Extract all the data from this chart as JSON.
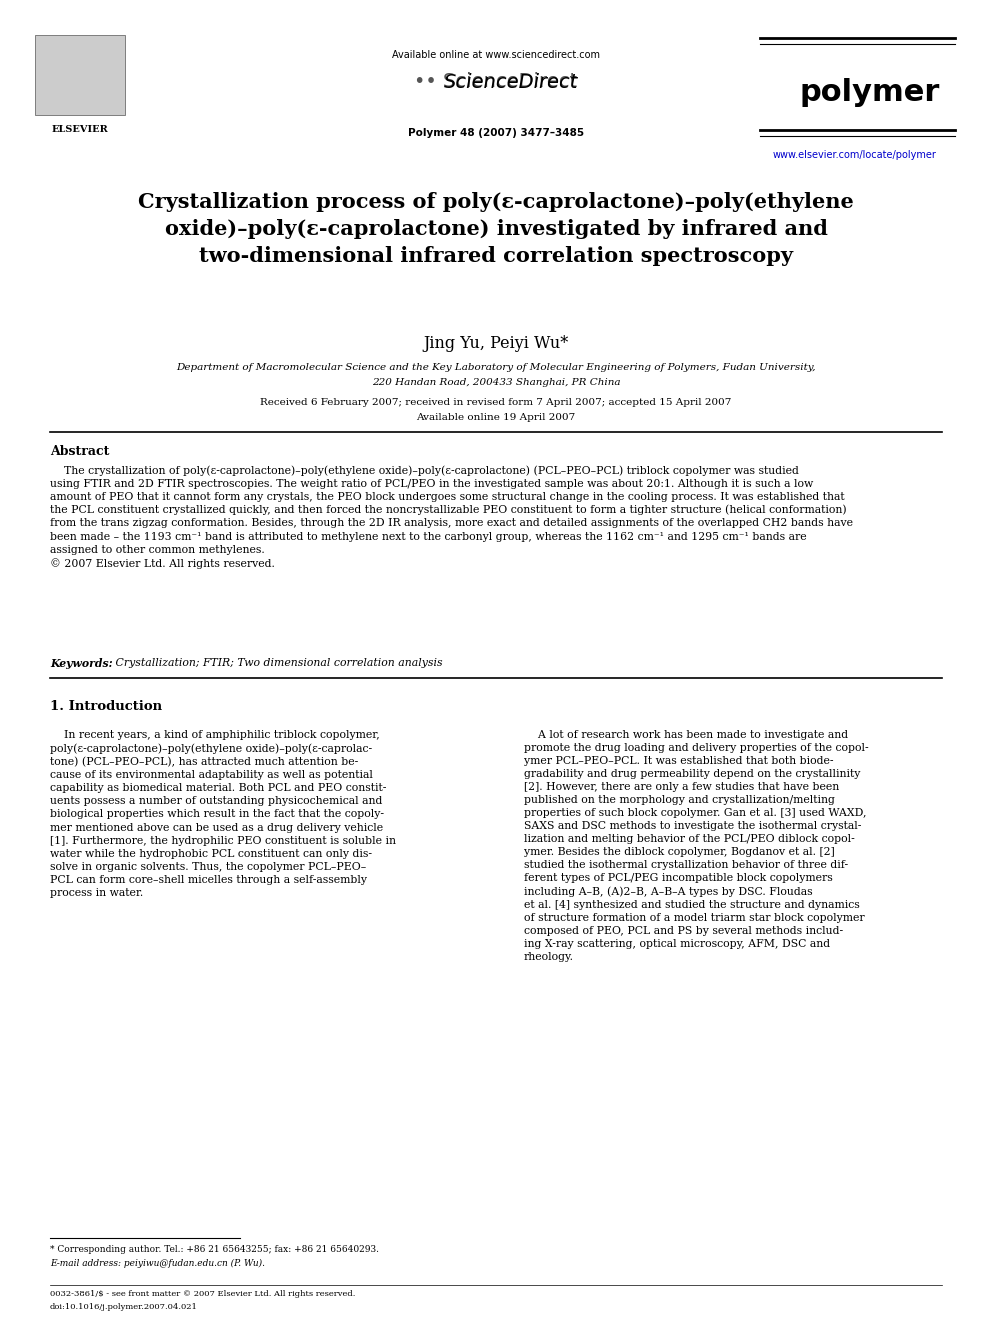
{
  "bg_color": "#ffffff",
  "page_width": 9.92,
  "page_height": 13.23,
  "header": {
    "available_online": "Available online at www.sciencedirect.com",
    "journal_info": "Polymer 48 (2007) 3477–3485",
    "journal_name": "polymer",
    "url": "www.elsevier.com/locate/polymer"
  },
  "title": "Crystallization process of poly(ε-caprolactone)–poly(ethylene\noxide)–poly(ε-caprolactone) investigated by infrared and\ntwo-dimensional infrared correlation spectroscopy",
  "authors": "Jing Yu, Peiyi Wu*",
  "affiliation_line1": "Department of Macromolecular Science and the Key Laboratory of Molecular Engineering of Polymers, Fudan University,",
  "affiliation_line2": "220 Handan Road, 200433 Shanghai, PR China",
  "dates": "Received 6 February 2007; received in revised form 7 April 2007; accepted 15 April 2007",
  "online_date": "Available online 19 April 2007",
  "abstract_title": "Abstract",
  "abstract_text": "    The crystallization of poly(ε-caprolactone)–poly(ethylene oxide)–poly(ε-caprolactone) (PCL–PEO–PCL) triblock copolymer was studied\nusing FTIR and 2D FTIR spectroscopies. The weight ratio of PCL/PEO in the investigated sample was about 20:1. Although it is such a low\namount of PEO that it cannot form any crystals, the PEO block undergoes some structural change in the cooling process. It was established that\nthe PCL constituent crystallized quickly, and then forced the noncrystallizable PEO constituent to form a tighter structure (helical conformation)\nfrom the trans zigzag conformation. Besides, through the 2D IR analysis, more exact and detailed assignments of the overlapped CH2 bands have\nbeen made – the 1193 cm⁻¹ band is attributed to methylene next to the carbonyl group, whereas the 1162 cm⁻¹ and 1295 cm⁻¹ bands are\nassigned to other common methylenes.\n© 2007 Elsevier Ltd. All rights reserved.",
  "keywords_bold": "Keywords:",
  "keywords_rest": " Crystallization; FTIR; Two dimensional correlation analysis",
  "section1_title": "1. Introduction",
  "intro_col1": "    In recent years, a kind of amphiphilic triblock copolymer,\npoly(ε-caprolactone)–poly(ethylene oxide)–poly(ε-caprolac-\ntone) (PCL–PEO–PCL), has attracted much attention be-\ncause of its environmental adaptability as well as potential\ncapability as biomedical material. Both PCL and PEO constit-\nuents possess a number of outstanding physicochemical and\nbiological properties which result in the fact that the copoly-\nmer mentioned above can be used as a drug delivery vehicle\n[1]. Furthermore, the hydrophilic PEO constituent is soluble in\nwater while the hydrophobic PCL constituent can only dis-\nsolve in organic solvents. Thus, the copolymer PCL–PEO–\nPCL can form core–shell micelles through a self-assembly\nprocess in water.",
  "intro_col2": "    A lot of research work has been made to investigate and\npromote the drug loading and delivery properties of the copol-\nymer PCL–PEO–PCL. It was established that both biode-\ngradability and drug permeability depend on the crystallinity\n[2]. However, there are only a few studies that have been\npublished on the morphology and crystallization/melting\nproperties of such block copolymer. Gan et al. [3] used WAXD,\nSAXS and DSC methods to investigate the isothermal crystal-\nlization and melting behavior of the PCL/PEO diblock copol-\nymer. Besides the diblock copolymer, Bogdanov et al. [2]\nstudied the isothermal crystallization behavior of three dif-\nferent types of PCL/PEG incompatible block copolymers\nincluding A–B, (A)2–B, A–B–A types by DSC. Floudas\net al. [4] synthesized and studied the structure and dynamics\nof structure formation of a model triarm star block copolymer\ncomposed of PEO, PCL and PS by several methods includ-\ning X-ray scattering, optical microscopy, AFM, DSC and\nrheology.",
  "footnote_star": "* Corresponding author. Tel.: +86 21 65643255; fax: +86 21 65640293.",
  "footnote_email": "E-mail address: peiyiwu@fudan.edu.cn (P. Wu).",
  "footer_issn": "0032-3861/$ - see front matter © 2007 Elsevier Ltd. All rights reserved.",
  "footer_doi": "doi:10.1016/j.polymer.2007.04.021"
}
